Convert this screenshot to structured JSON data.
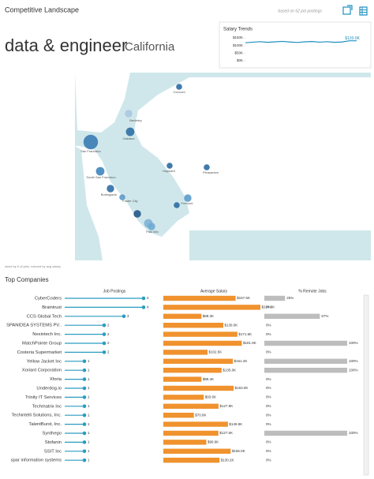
{
  "header": {
    "title": "Competitive Landscape",
    "note": "based on 62 job postings"
  },
  "heading": {
    "query": "data & engineer",
    "location": "California"
  },
  "chart_data": {
    "type": "line",
    "title": "Salary Trends",
    "ylim": [
      0,
      150000
    ],
    "yticks": [
      {
        "value": 150000,
        "label": "$150K"
      },
      {
        "value": 100000,
        "label": "$100K"
      },
      {
        "value": 50000,
        "label": "$50K"
      },
      {
        "value": 0,
        "label": "$0K"
      }
    ],
    "series": [
      {
        "name": "Average salary",
        "color": "#1f8fbf",
        "values": [
          118000,
          122000,
          125000,
          121000,
          124000,
          127000,
          123000,
          120000,
          124000,
          126000,
          122000,
          125000,
          121000,
          123000,
          131000,
          130900
        ],
        "value_labels": [
          null,
          null,
          null,
          null,
          null,
          null,
          null,
          null,
          null,
          null,
          null,
          null,
          null,
          null,
          null,
          "$130.9K"
        ]
      }
    ]
  },
  "map": {
    "caption": "sized by # of jobs, colored by avg salary",
    "cities": [
      {
        "name": "Concord",
        "jobs": 1,
        "color": "#2b6ca3"
      },
      {
        "name": "Berkeley",
        "jobs": 2,
        "color": "#a9c8e0"
      },
      {
        "name": "Oakland",
        "jobs": 3,
        "color": "#2f6fa6"
      },
      {
        "name": "San Francisco",
        "jobs": 12,
        "color": "#3a7cb4"
      },
      {
        "name": "South San Francisco",
        "jobs": 3,
        "color": "#3f86bd"
      },
      {
        "name": "Hayward",
        "jobs": 1,
        "color": "#2b6ca3"
      },
      {
        "name": "Pleasanton",
        "jobs": 1,
        "color": "#2b6ca3"
      },
      {
        "name": "Burlingame",
        "jobs": 2,
        "color": "#2f6fa6"
      },
      {
        "name": "Foster City",
        "jobs": 1,
        "color": "#5b9bcb"
      },
      {
        "name": "Fremont",
        "jobs": 2,
        "color": "#5b9bcb"
      },
      {
        "name": "Palo Alto",
        "jobs": 3,
        "color": "#7fb2d8"
      },
      {
        "name": null,
        "jobs": 2,
        "color": "#24578a"
      },
      {
        "name": null,
        "jobs": 2,
        "color": "#6ea8d3"
      },
      {
        "name": null,
        "jobs": 1,
        "color": "#2b6ca3"
      }
    ]
  },
  "companies": {
    "title": "Top Companies",
    "columns": [
      "Job Postings",
      "Average Salary",
      "% Remote Jobs"
    ],
    "rows": [
      {
        "name": "CyberCoders",
        "postings": 4,
        "salary": 167500,
        "salary_label": "$167.5K",
        "remote": 25,
        "remote_label": "25%"
      },
      {
        "name": "Braintrust",
        "postings": 4,
        "salary": 224900,
        "salary_label": "$224.9K",
        "remote": 0,
        "remote_label": "0%"
      },
      {
        "name": "CCS Global Tech",
        "postings": 3,
        "salary": 88300,
        "salary_label": "$88.3K",
        "remote": 67,
        "remote_label": "67%"
      },
      {
        "name": "SPANIDEA SYSTEMS PV..",
        "postings": 2,
        "salary": 139000,
        "salary_label": "$139.0K",
        "remote": 0,
        "remote_label": "0%"
      },
      {
        "name": "Nexintech Inc.",
        "postings": 2,
        "salary": 171600,
        "salary_label": "$171.6K",
        "remote": 0,
        "remote_label": "0%"
      },
      {
        "name": "MatchPointe Group",
        "postings": 2,
        "salary": 181900,
        "salary_label": "$181.9K",
        "remote": 100,
        "remote_label": "100%"
      },
      {
        "name": "Costeria Supermarket",
        "postings": 2,
        "salary": 102500,
        "salary_label": "$102.5K",
        "remote": 0,
        "remote_label": "0%"
      },
      {
        "name": "Yellow Jacket Inc",
        "postings": 1,
        "salary": 161200,
        "salary_label": "$161.2K",
        "remote": 100,
        "remote_label": "100%"
      },
      {
        "name": "Xoriant Corporation",
        "postings": 1,
        "salary": 135000,
        "salary_label": "$135.0K",
        "remote": 100,
        "remote_label": "100%"
      },
      {
        "name": "Xforia",
        "postings": 1,
        "salary": 88400,
        "salary_label": "$88.4K",
        "remote": 0,
        "remote_label": "0%"
      },
      {
        "name": "Underdog.io",
        "postings": 1,
        "salary": 163000,
        "salary_label": "$163.0K",
        "remote": 0,
        "remote_label": "0%"
      },
      {
        "name": "Trinity IT Services",
        "postings": 1,
        "salary": 93600,
        "salary_label": "$93.6K",
        "remote": 0,
        "remote_label": "0%"
      },
      {
        "name": "Techmatrix Inc",
        "postings": 1,
        "salary": 127900,
        "salary_label": "$127.9K",
        "remote": 0,
        "remote_label": "0%"
      },
      {
        "name": "Techintelli Solutions, Inc.",
        "postings": 1,
        "salary": 70800,
        "salary_label": "$70.8K",
        "remote": 0,
        "remote_label": "0%"
      },
      {
        "name": "TalentBurst, Inc.",
        "postings": 1,
        "salary": 149800,
        "salary_label": "$149.8K",
        "remote": 0,
        "remote_label": "0%"
      },
      {
        "name": "Synthego",
        "postings": 1,
        "salary": 127500,
        "salary_label": "$127.5K",
        "remote": 100,
        "remote_label": "100%"
      },
      {
        "name": "Stofanin",
        "postings": 1,
        "salary": 99600,
        "salary_label": "$99.6K",
        "remote": 0,
        "remote_label": "0%"
      },
      {
        "name": "SSIT Inc",
        "postings": 1,
        "salary": 156000,
        "salary_label": "$156.0K",
        "remote": 0,
        "remote_label": "0%"
      },
      {
        "name": "spar information systems",
        "postings": 1,
        "salary": 130200,
        "salary_label": "$130.2K",
        "remote": 0,
        "remote_label": "0%"
      }
    ]
  }
}
